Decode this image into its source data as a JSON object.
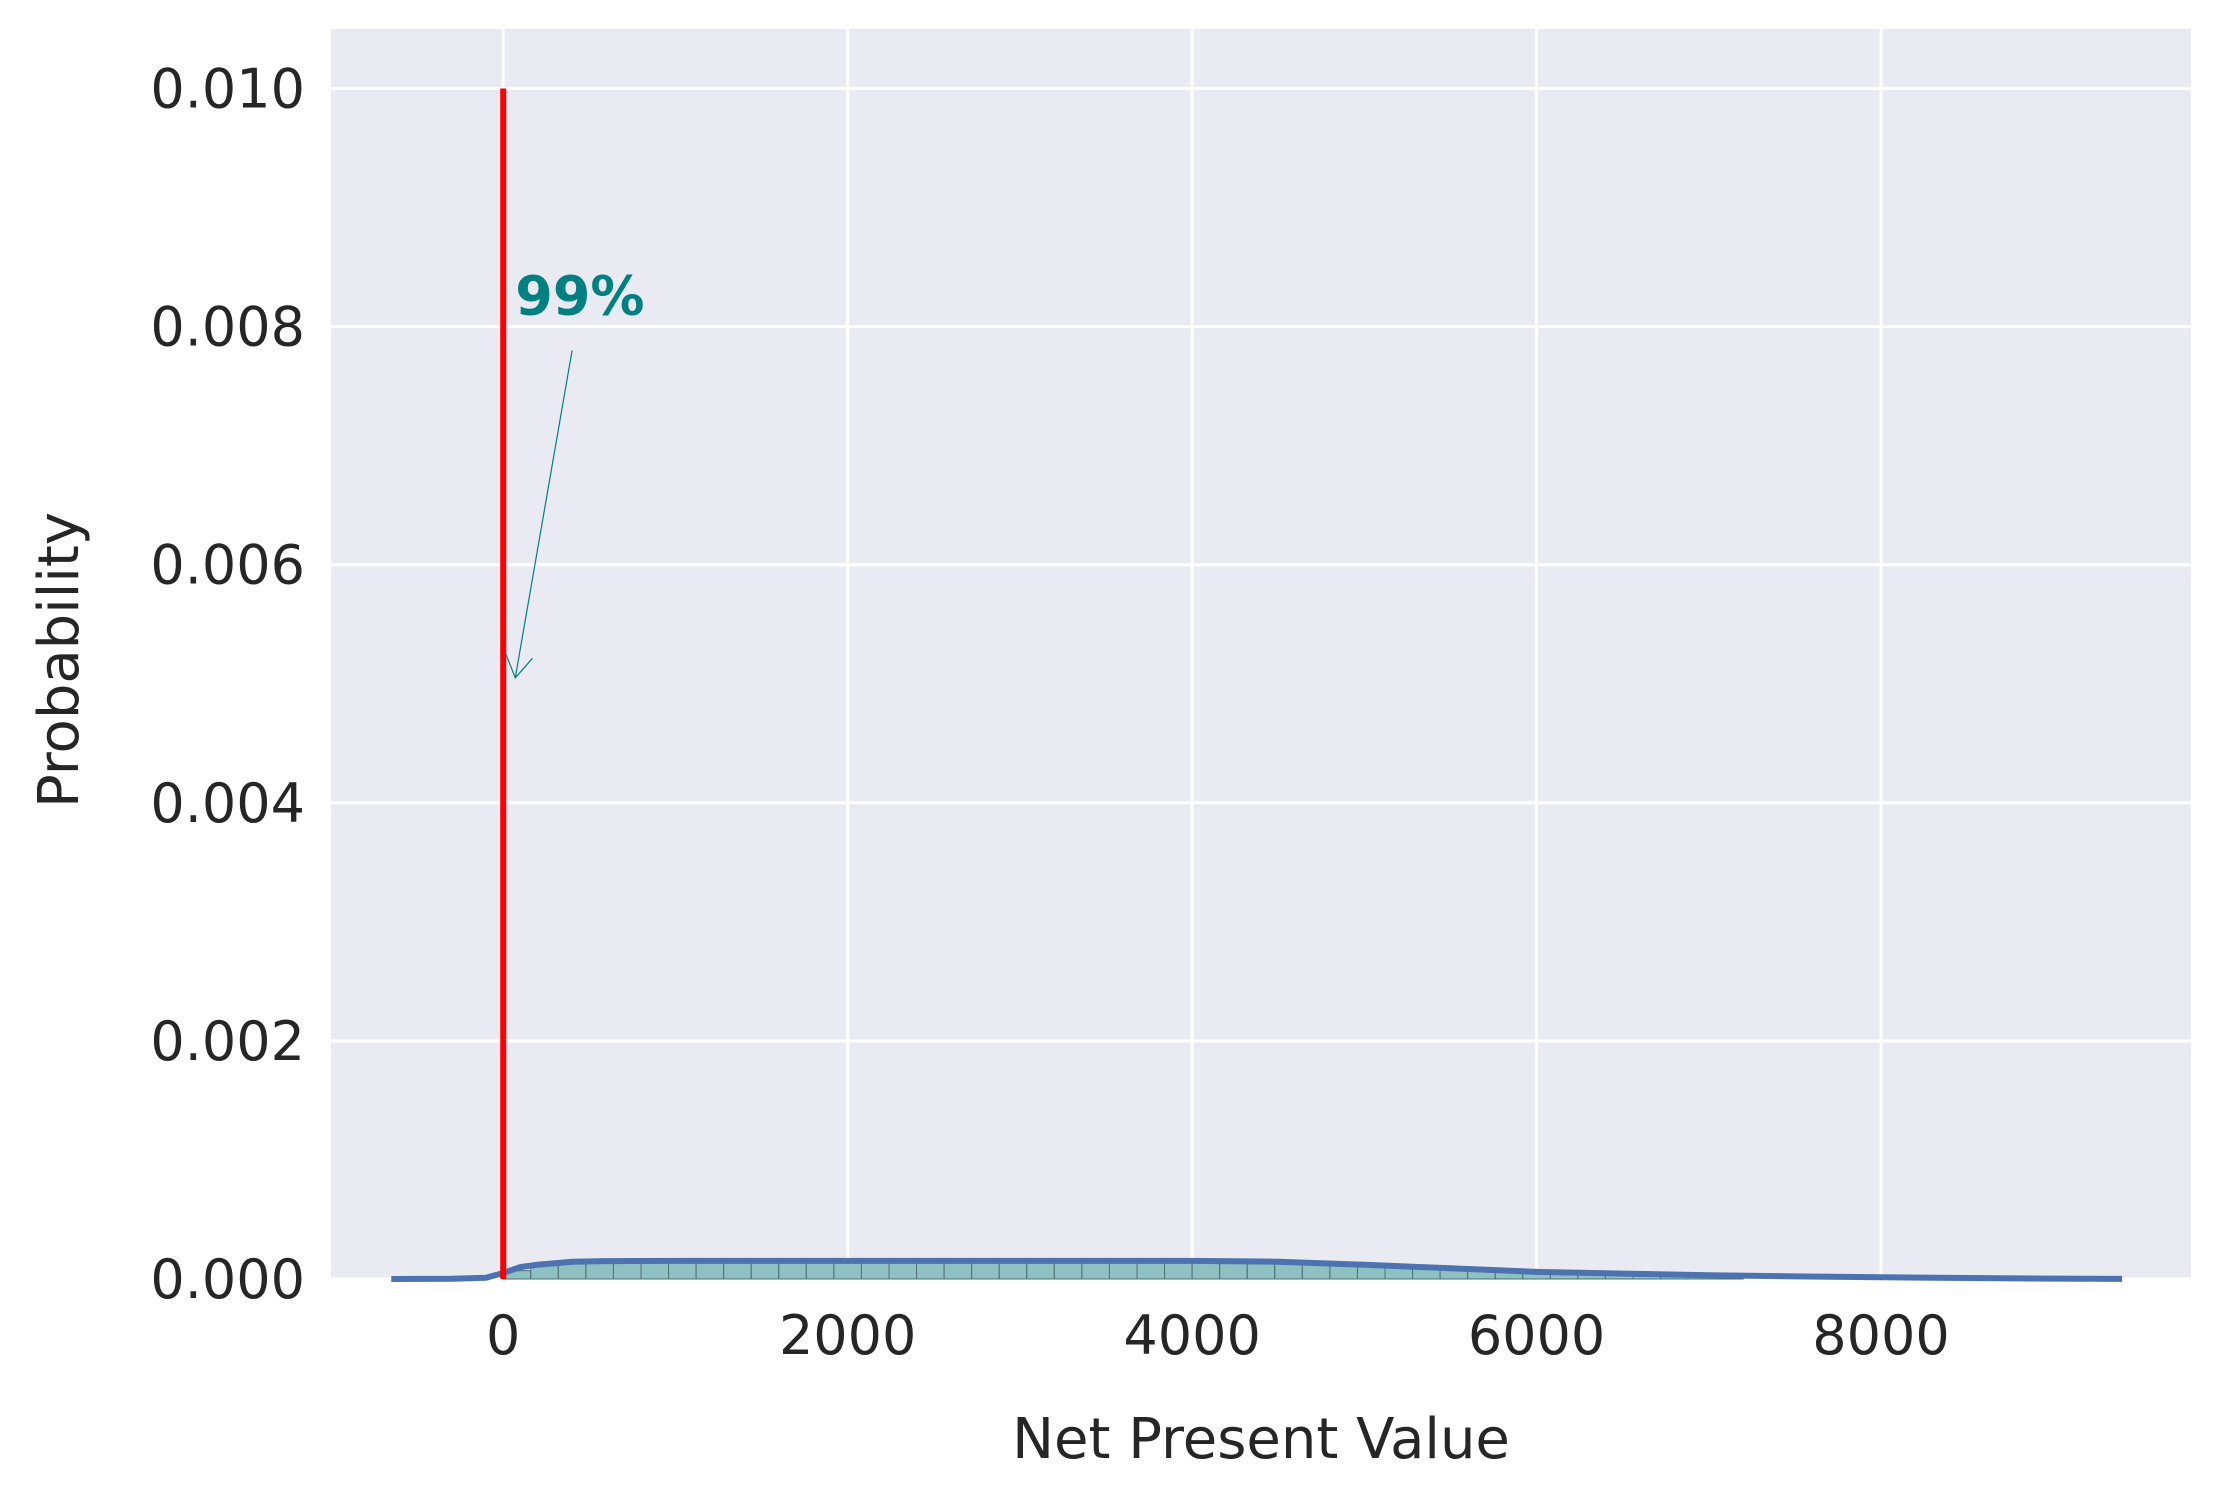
{
  "chart_data": {
    "type": "histogram",
    "xlabel": "Net Present Value",
    "ylabel": "Probability",
    "xlim": [
      -1000,
      9800
    ],
    "ylim": [
      0,
      0.0105
    ],
    "x_ticks": [
      0,
      2000,
      4000,
      6000,
      8000
    ],
    "x_tick_labels": [
      "0",
      "2000",
      "4000",
      "6000",
      "8000"
    ],
    "y_ticks": [
      0,
      0.002,
      0.004,
      0.006,
      0.008,
      0.01
    ],
    "y_tick_labels": [
      "0.000",
      "0.002",
      "0.004",
      "0.006",
      "0.008",
      "0.010"
    ],
    "grid": true,
    "histogram": {
      "bin_edges": [
        0,
        160,
        320,
        480,
        640,
        800,
        960,
        1120,
        1280,
        1440,
        1600,
        1760,
        1920,
        2080,
        2240,
        2400,
        2560,
        2720,
        2880,
        3040,
        3200,
        3360,
        3520,
        3680,
        3840,
        4000,
        4160,
        4320,
        4480,
        4640,
        4800,
        4960,
        5120,
        5280,
        5440,
        5600,
        5760,
        5920,
        6080,
        6240,
        6400,
        6560,
        6720,
        6880,
        7040,
        7200
      ],
      "densities": [
        7e-05,
        0.00012,
        0.00014,
        0.00015,
        0.00015,
        0.00015,
        0.00015,
        0.00015,
        0.00015,
        0.00015,
        0.00015,
        0.00015,
        0.00015,
        0.00015,
        0.00015,
        0.00015,
        0.00015,
        0.00015,
        0.00015,
        0.00015,
        0.00015,
        0.00015,
        0.00015,
        0.00015,
        0.00015,
        0.00015,
        0.00015,
        0.00015,
        0.00015,
        0.00014,
        0.00012,
        0.00011,
        0.0001,
        9e-05,
        8e-05,
        7e-05,
        6e-05,
        5e-05,
        4e-05,
        4e-05,
        3e-05,
        3e-05,
        2e-05,
        2e-05,
        1e-05
      ]
    },
    "kde": {
      "x": [
        -650,
        -300,
        -100,
        0,
        100,
        200,
        400,
        600,
        1000,
        2000,
        3000,
        4000,
        4500,
        5000,
        5500,
        6000,
        6500,
        7000,
        7500,
        8000,
        8500,
        9000,
        9400
      ],
      "y": [
        0,
        2e-06,
        1e-05,
        5e-05,
        0.0001,
        0.00012,
        0.000145,
        0.00015,
        0.000152,
        0.000152,
        0.000152,
        0.000152,
        0.000145,
        0.00012,
        9e-05,
        6e-05,
        4.5e-05,
        3.2e-05,
        2.2e-05,
        1.4e-05,
        8e-06,
        3e-06,
        1e-06
      ]
    },
    "vline": {
      "x": 0,
      "y_from": 0,
      "y_to": 0.01,
      "color": "#ff0000"
    },
    "annotation": {
      "text": "99%",
      "text_x": 70,
      "text_y": 0.0081,
      "arrow_from_x": 400,
      "arrow_from_y": 0.0078,
      "arrow_to_x": 70,
      "arrow_to_y": 0.00505,
      "color": "#008080"
    },
    "colors": {
      "background": "#eaeaf2",
      "grid": "#ffffff",
      "bar_fill": "#8fc1c3",
      "bar_edge": "#4a6f70",
      "kde_line": "#4c72b0",
      "text": "#262626"
    }
  }
}
